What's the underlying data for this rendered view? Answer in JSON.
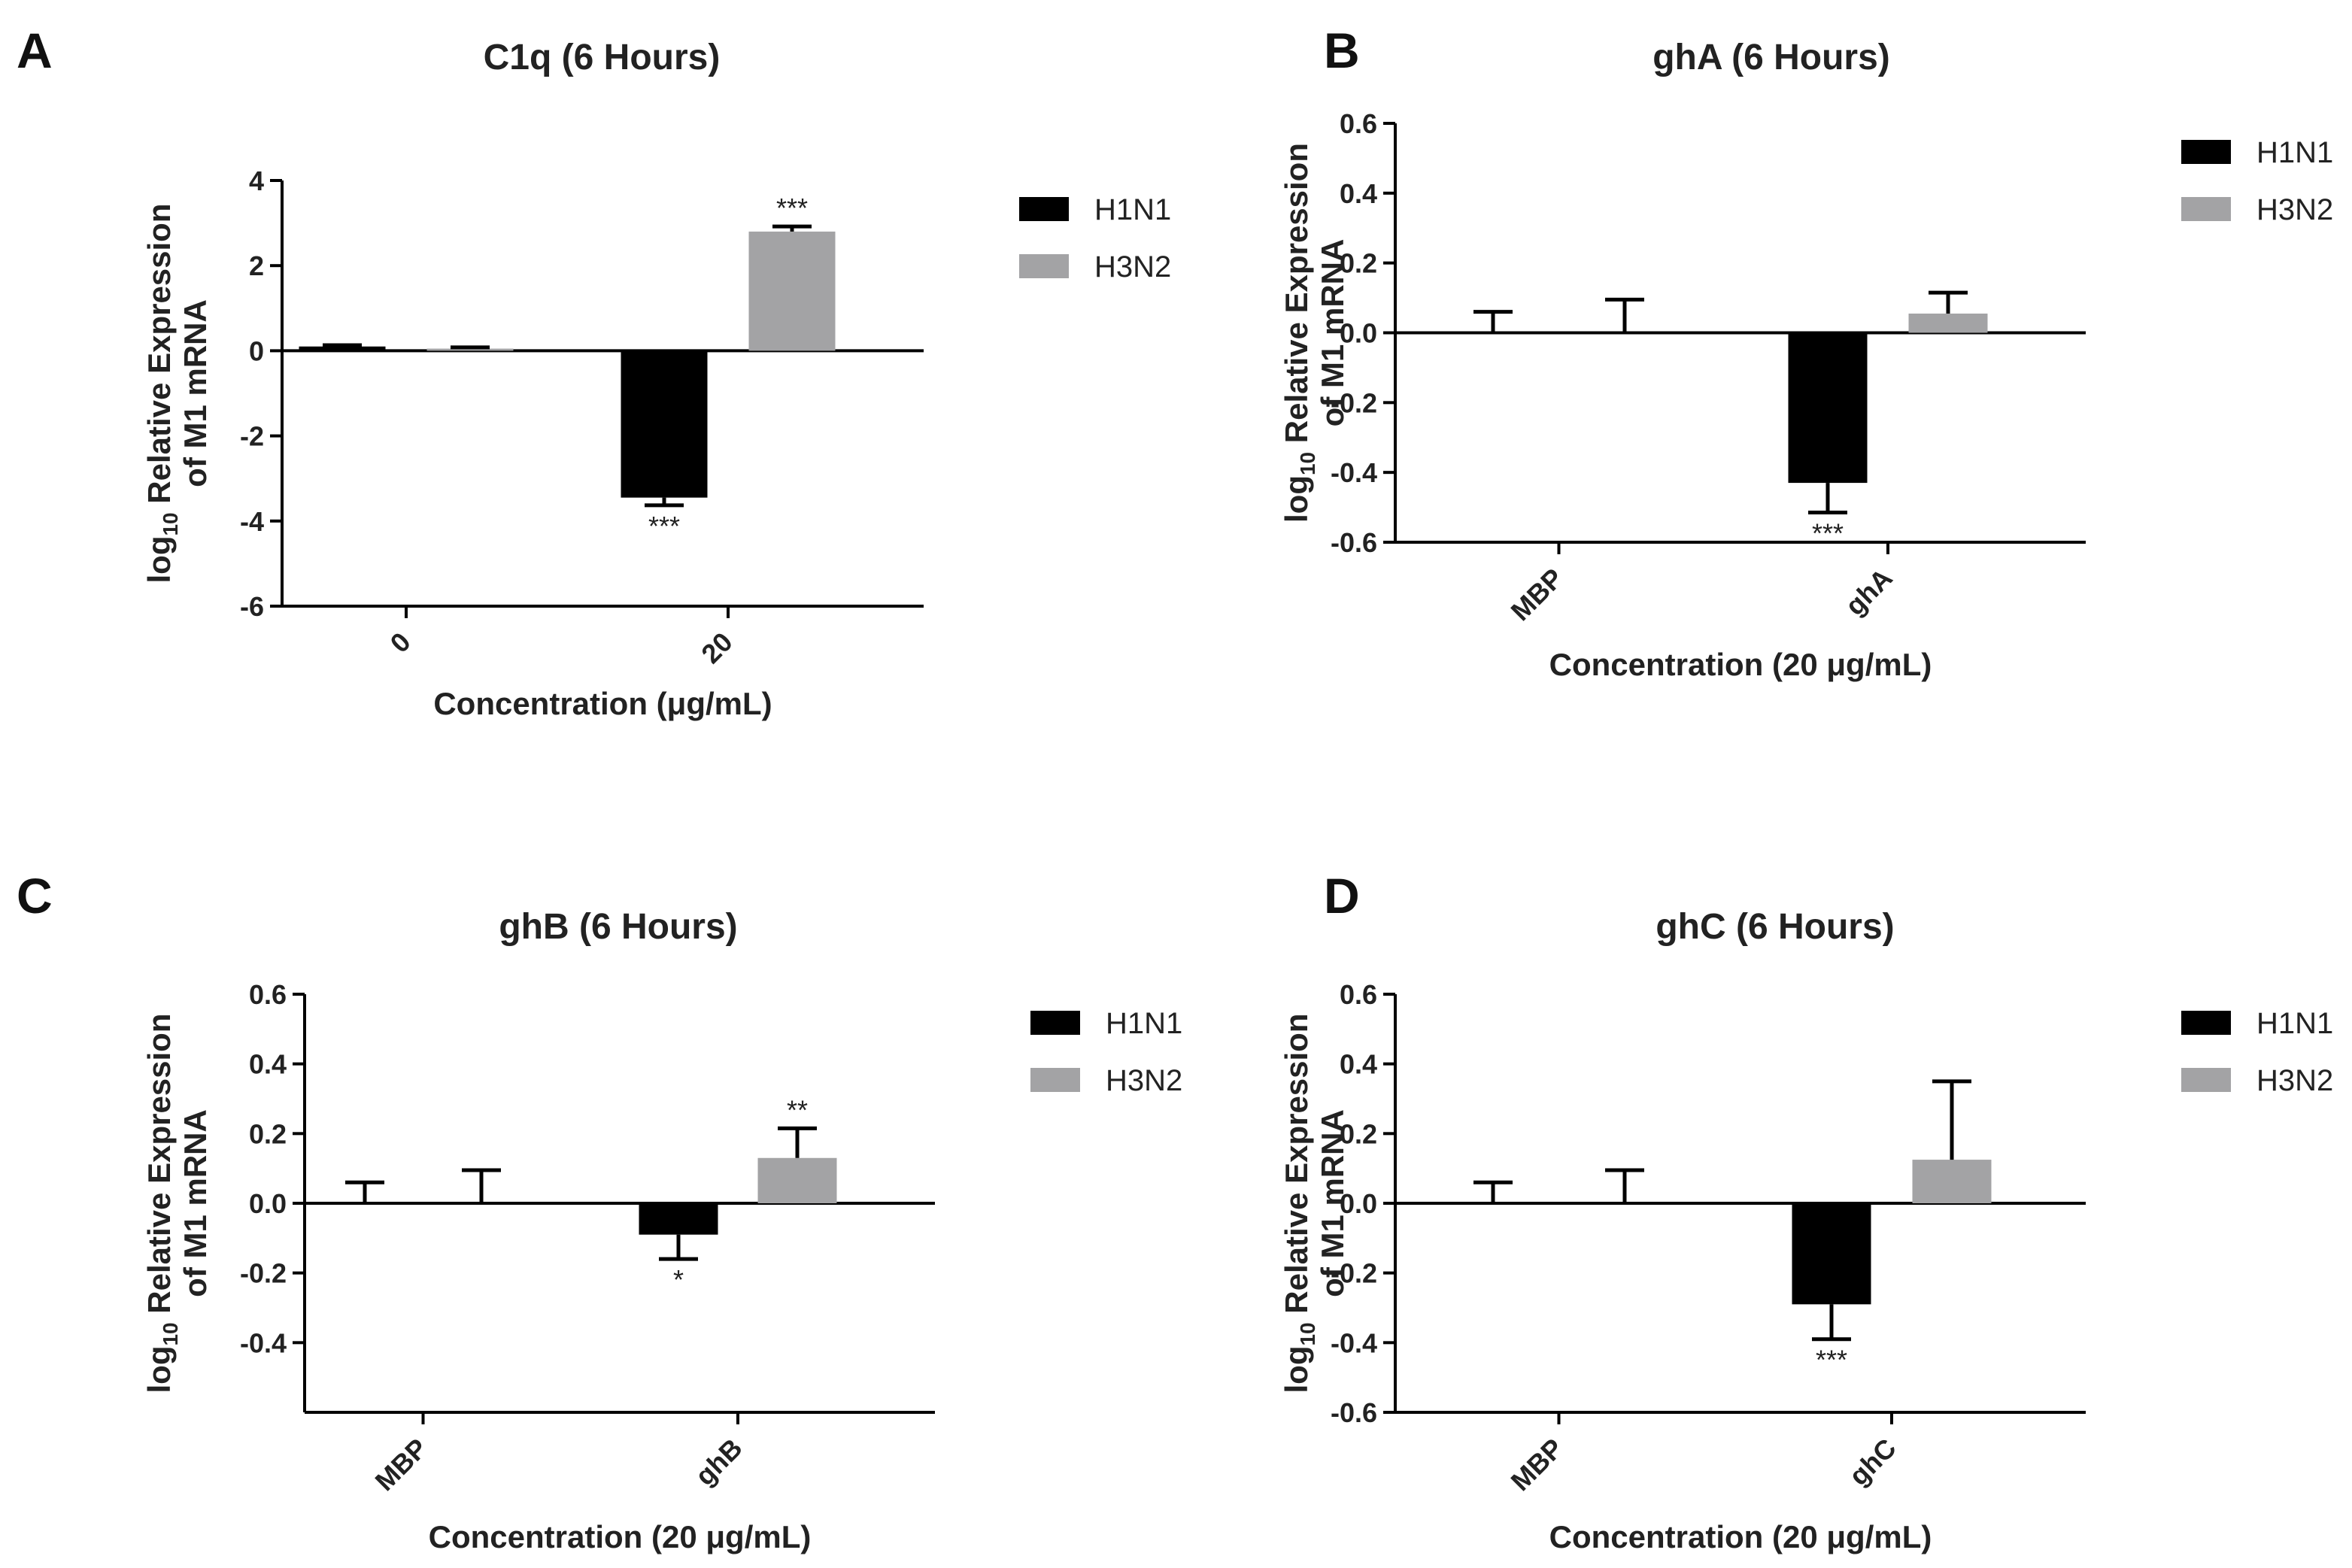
{
  "chart_data": [
    {
      "type": "bar",
      "panel_label": "A",
      "title": "C1q (6 Hours)",
      "ylabel_main": "Relative Expression",
      "ylabel_log": "log",
      "ylabel_sub": "10",
      "ylabel_line2": "of M1 mRNA",
      "xlabel": "Concentration (μg/mL)",
      "categories": [
        "0",
        "20"
      ],
      "ylim": [
        -6,
        4
      ],
      "yticks": [
        "-6",
        "-4",
        "-2",
        "0",
        "2",
        "4"
      ],
      "series": [
        {
          "name": "H1N1",
          "color": "#000000",
          "values": [
            0.1,
            -3.45
          ],
          "errors": [
            0.03,
            0.18
          ],
          "significance": [
            "",
            "***"
          ]
        },
        {
          "name": "H3N2",
          "color": "#a3a3a5",
          "values": [
            0.05,
            2.8
          ],
          "errors": [
            0.03,
            0.12
          ],
          "significance": [
            "",
            "***"
          ]
        }
      ],
      "legend_position": "right"
    },
    {
      "type": "bar",
      "panel_label": "B",
      "title": "ghA (6 Hours)",
      "ylabel_main": "Relative Expression",
      "ylabel_log": "log",
      "ylabel_sub": "10",
      "ylabel_line2": "of M1 mRNA",
      "xlabel": "Concentration (20 μg/mL)",
      "categories": [
        "MBP",
        "ghA"
      ],
      "ylim": [
        -0.6,
        0.6
      ],
      "yticks": [
        "-0.6",
        "-0.4",
        "-0.2",
        "0.0",
        "0.2",
        "0.4",
        "0.6"
      ],
      "series": [
        {
          "name": "H1N1",
          "color": "#000000",
          "values": [
            0.0,
            -0.43
          ],
          "errors": [
            0.06,
            0.085
          ],
          "significance": [
            "",
            "***"
          ]
        },
        {
          "name": "H3N2",
          "color": "#a3a3a5",
          "values": [
            0.0,
            0.055
          ],
          "errors": [
            0.095,
            0.06
          ],
          "significance": [
            "",
            ""
          ]
        }
      ],
      "legend_position": "right"
    },
    {
      "type": "bar",
      "panel_label": "C",
      "title": "ghB (6 Hours)",
      "ylabel_main": "Relative Expression",
      "ylabel_log": "log",
      "ylabel_sub": "10",
      "ylabel_line2": "of M1 mRNA",
      "xlabel": "Concentration (20 μg/mL)",
      "categories": [
        "MBP",
        "ghB"
      ],
      "ylim": [
        -0.6,
        0.6
      ],
      "yticks": [
        "-0.4",
        "-0.2",
        "0.0",
        "0.2",
        "0.4",
        "0.6"
      ],
      "series": [
        {
          "name": "H1N1",
          "color": "#000000",
          "values": [
            0.0,
            -0.09
          ],
          "errors": [
            0.06,
            0.07
          ],
          "significance": [
            "",
            "*"
          ]
        },
        {
          "name": "H3N2",
          "color": "#a3a3a5",
          "values": [
            0.0,
            0.13
          ],
          "errors": [
            0.095,
            0.085
          ],
          "significance": [
            "",
            "**"
          ]
        }
      ],
      "legend_position": "right"
    },
    {
      "type": "bar",
      "panel_label": "D",
      "title": "ghC (6 Hours)",
      "ylabel_main": "Relative Expression",
      "ylabel_log": "log",
      "ylabel_sub": "10",
      "ylabel_line2": "of M1 mRNA",
      "xlabel": "Concentration (20 μg/mL)",
      "categories": [
        "MBP",
        "ghC"
      ],
      "ylim": [
        -0.6,
        0.6
      ],
      "yticks": [
        "-0.6",
        "-0.4",
        "-0.2",
        "0.0",
        "0.2",
        "0.4",
        "0.6"
      ],
      "series": [
        {
          "name": "H1N1",
          "color": "#000000",
          "values": [
            0.0,
            -0.29
          ],
          "errors": [
            0.06,
            0.1
          ],
          "significance": [
            "",
            "***"
          ]
        },
        {
          "name": "H3N2",
          "color": "#a3a3a5",
          "values": [
            0.0,
            0.125
          ],
          "errors": [
            0.095,
            0.225
          ],
          "significance": [
            "",
            ""
          ]
        }
      ],
      "legend_position": "right"
    }
  ]
}
